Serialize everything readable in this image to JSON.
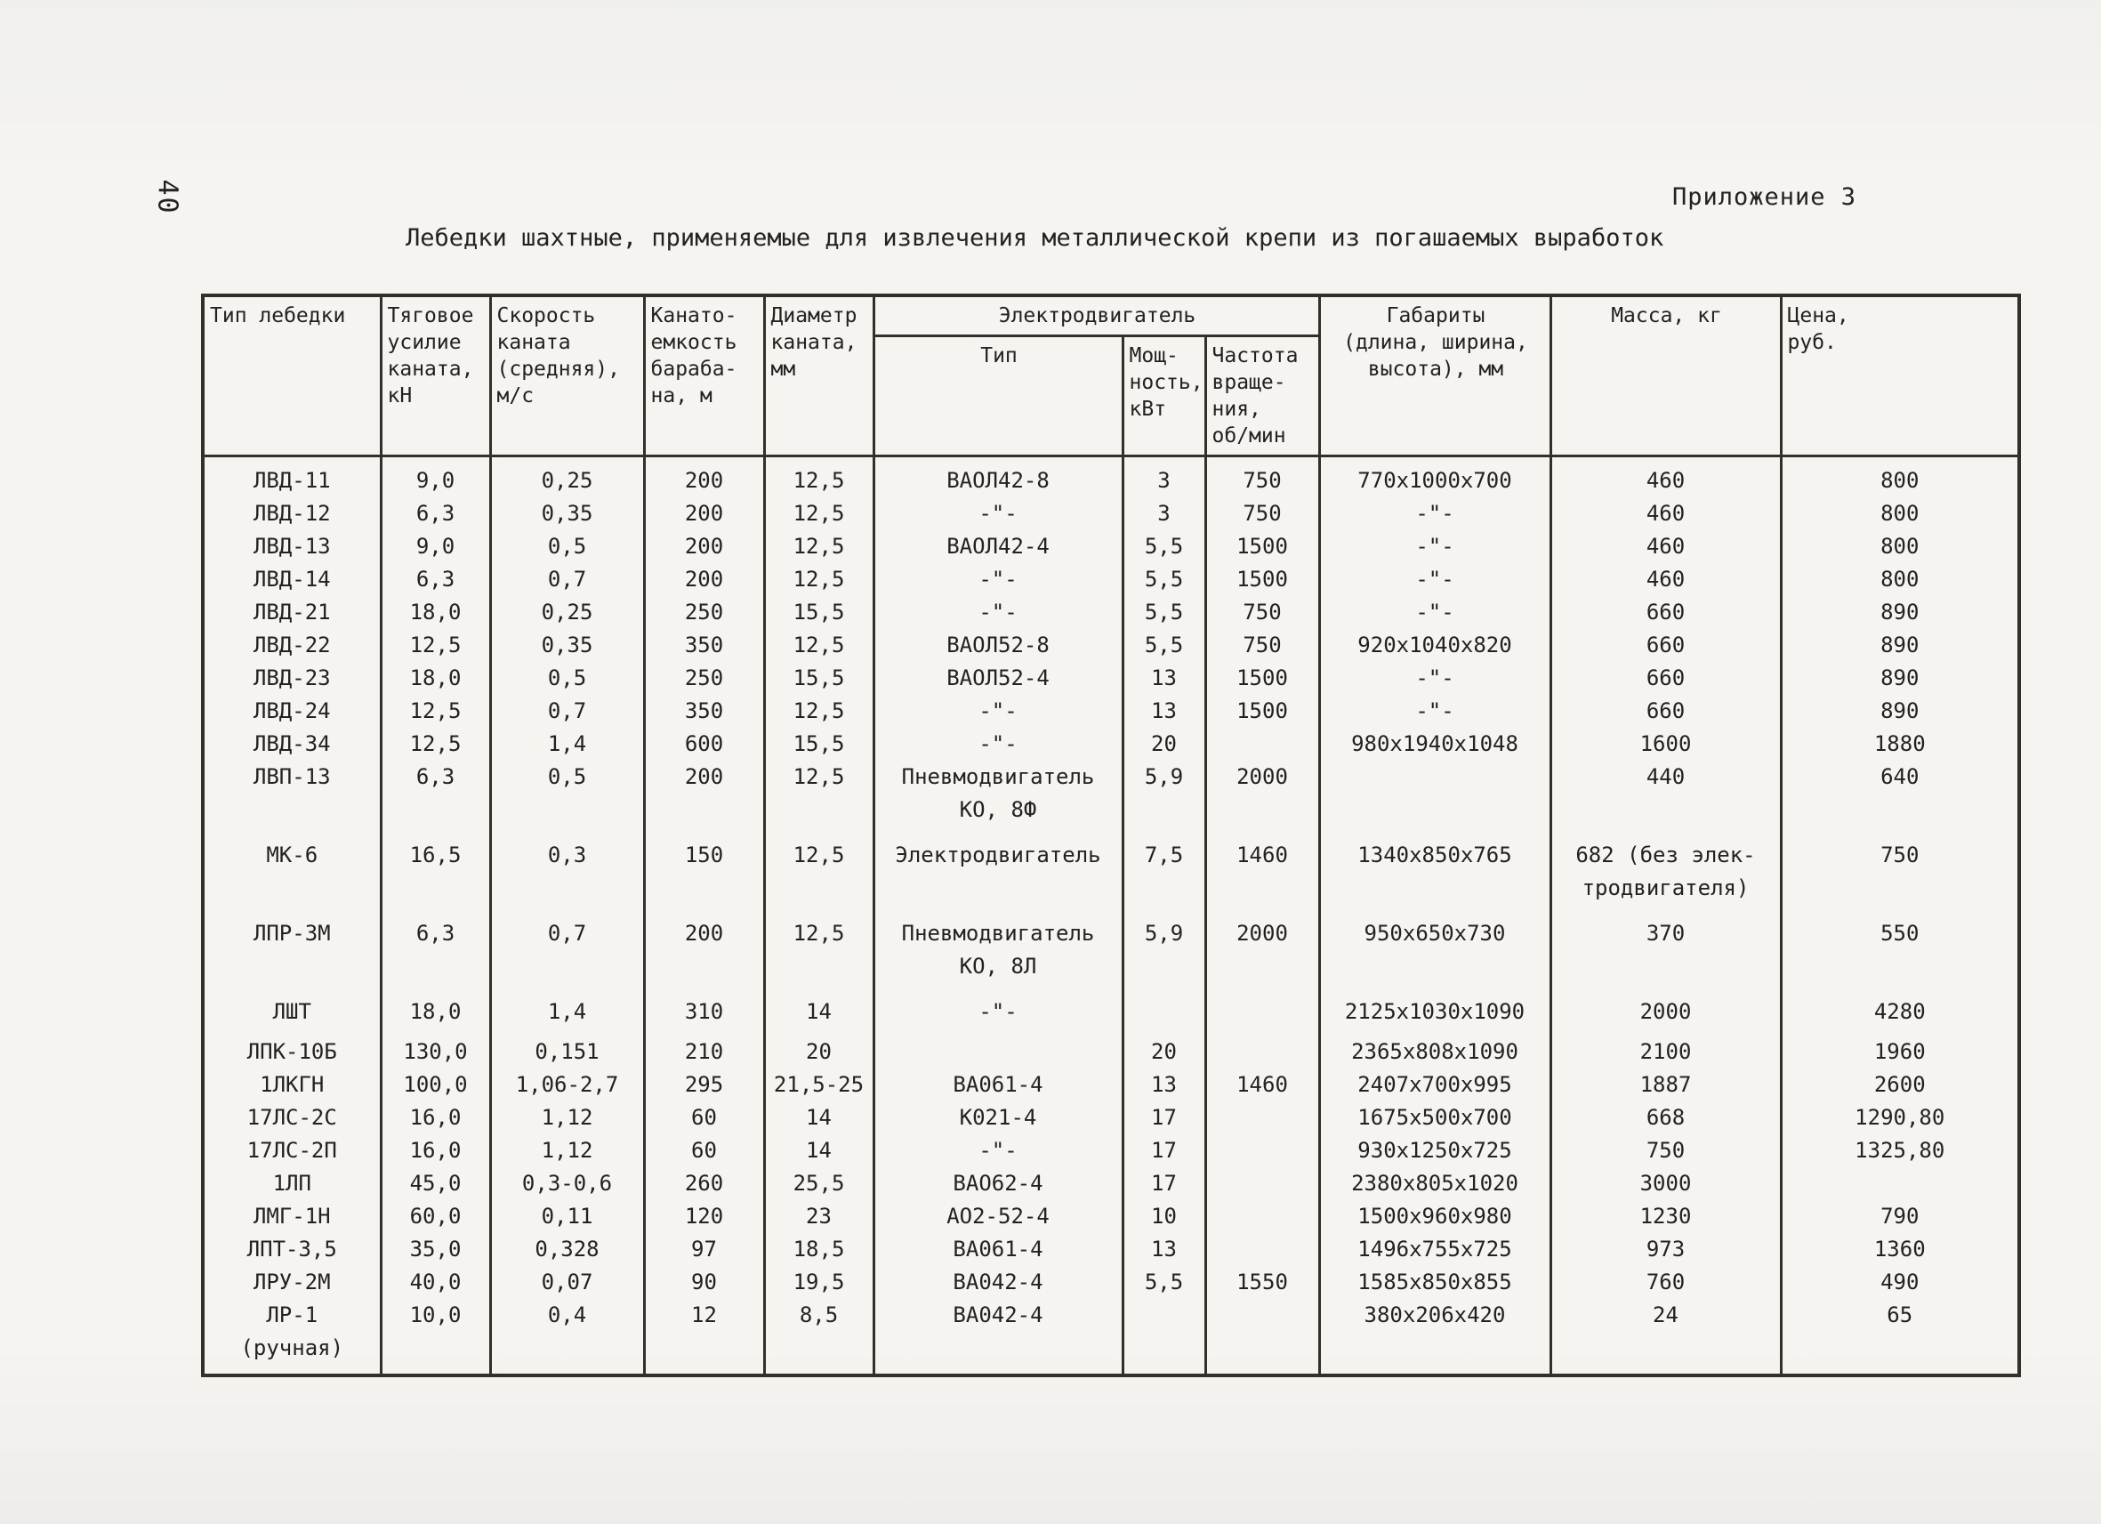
{
  "page": {
    "page_number": "40",
    "appendix_label": "Приложение  3",
    "title": "Лебедки шахтные, применяемые для извлечения металлической крепи из погашаемых выработок"
  },
  "table": {
    "header": {
      "type": "Тип лебедки",
      "force": "Тяговое\nусилие\nканата,\nкН",
      "speed": "Скорость\nканата\n(средняя),\nм/с",
      "capacity": "Канато-\nемкость\nбараба-\nна, м",
      "diameter": "Диаметр\nканата,\nмм",
      "motor_group": "Электродвигатель",
      "motor_type": "Тип",
      "motor_power": "Мощ-\nность,\nкВт",
      "motor_speed": "Частота\nвраще-\nния,\nоб/мин",
      "dimensions": "Габариты\n(длина, ширина,\nвысота), мм",
      "mass": "Масса, кг",
      "price": "Цена,\nруб."
    },
    "rows": [
      [
        "ЛВД-11",
        "9,0",
        "0,25",
        "200",
        "12,5",
        "ВАОЛ42-8",
        "3",
        "750",
        "770х1000х700",
        "460",
        "800"
      ],
      [
        "ЛВД-12",
        "6,3",
        "0,35",
        "200",
        "12,5",
        "-\"-",
        "3",
        "750",
        "-\"-",
        "460",
        "800"
      ],
      [
        "ЛВД-13",
        "9,0",
        "0,5",
        "200",
        "12,5",
        "ВАОЛ42-4",
        "5,5",
        "1500",
        "-\"-",
        "460",
        "800"
      ],
      [
        "ЛВД-14",
        "6,3",
        "0,7",
        "200",
        "12,5",
        "-\"-",
        "5,5",
        "1500",
        "-\"-",
        "460",
        "800"
      ],
      [
        "ЛВД-21",
        "18,0",
        "0,25",
        "250",
        "15,5",
        "-\"-",
        "5,5",
        "750",
        "-\"-",
        "660",
        "890"
      ],
      [
        "ЛВД-22",
        "12,5",
        "0,35",
        "350",
        "12,5",
        "ВАОЛ52-8",
        "5,5",
        "750",
        "920х1040х820",
        "660",
        "890"
      ],
      [
        "ЛВД-23",
        "18,0",
        "0,5",
        "250",
        "15,5",
        "ВАОЛ52-4",
        "13",
        "1500",
        "-\"-",
        "660",
        "890"
      ],
      [
        "ЛВД-24",
        "12,5",
        "0,7",
        "350",
        "12,5",
        "-\"-",
        "13",
        "1500",
        "-\"-",
        "660",
        "890"
      ],
      [
        "ЛВД-34",
        "12,5",
        "1,4",
        "600",
        "15,5",
        "-\"-",
        "20",
        "",
        "980х1940х1048",
        "1600",
        "1880"
      ],
      [
        "ЛВП-13",
        "6,3",
        "0,5",
        "200",
        "12,5",
        "Пневмодвигатель\nКО, 8Ф",
        "5,9",
        "2000",
        "",
        "440",
        "640"
      ],
      [
        "МК-6",
        "16,5",
        "0,3",
        "150",
        "12,5",
        "Электродвигатель",
        "7,5",
        "1460",
        "1340х850х765",
        "682 (без элек-\nтродвигателя)",
        "750"
      ],
      [
        "ЛПР-3М",
        "6,3",
        "0,7",
        "200",
        "12,5",
        "Пневмодвигатель\nКО, 8Л",
        "5,9",
        "2000",
        "950х650х730",
        "370",
        "550"
      ],
      [
        "ЛШТ",
        "18,0",
        "1,4",
        "310",
        "14",
        "-\"-",
        "",
        "",
        "2125х1030х1090",
        "2000",
        "4280"
      ],
      [
        "ЛПК-10Б",
        "130,0",
        "0,151",
        "210",
        "20",
        "",
        "20",
        "",
        "2365х808х1090",
        "2100",
        "1960"
      ],
      [
        "1ЛКГН",
        "100,0",
        "1,06-2,7",
        "295",
        "21,5-25",
        "ВА061-4",
        "13",
        "1460",
        "2407х700х995",
        "1887",
        "2600"
      ],
      [
        "17ЛС-2С",
        "16,0",
        "1,12",
        "60",
        "14",
        "К021-4",
        "17",
        "",
        "1675х500х700",
        "668",
        "1290,80"
      ],
      [
        "17ЛС-2П",
        "16,0",
        "1,12",
        "60",
        "14",
        "-\"-",
        "17",
        "",
        "930х1250х725",
        "750",
        "1325,80"
      ],
      [
        "1ЛП",
        "45,0",
        "0,3-0,6",
        "260",
        "25,5",
        "ВАО62-4",
        "17",
        "",
        "2380х805х1020",
        "3000",
        ""
      ],
      [
        "ЛМГ-1Н",
        "60,0",
        "0,11",
        "120",
        "23",
        "АО2-52-4",
        "10",
        "",
        "1500х960х980",
        "1230",
        "790"
      ],
      [
        "ЛПТ-3,5",
        "35,0",
        "0,328",
        "97",
        "18,5",
        "ВА061-4",
        "13",
        "",
        "1496х755х725",
        "973",
        "1360"
      ],
      [
        "ЛРУ-2М",
        "40,0",
        "0,07",
        "90",
        "19,5",
        "ВА042-4",
        "5,5",
        "1550",
        "1585х850х855",
        "760",
        "490"
      ],
      [
        "ЛР-1 (ручная)",
        "10,0",
        "0,4",
        "12",
        "8,5",
        "ВА042-4",
        "",
        "",
        "380х206х420",
        "24",
        "65"
      ]
    ]
  }
}
